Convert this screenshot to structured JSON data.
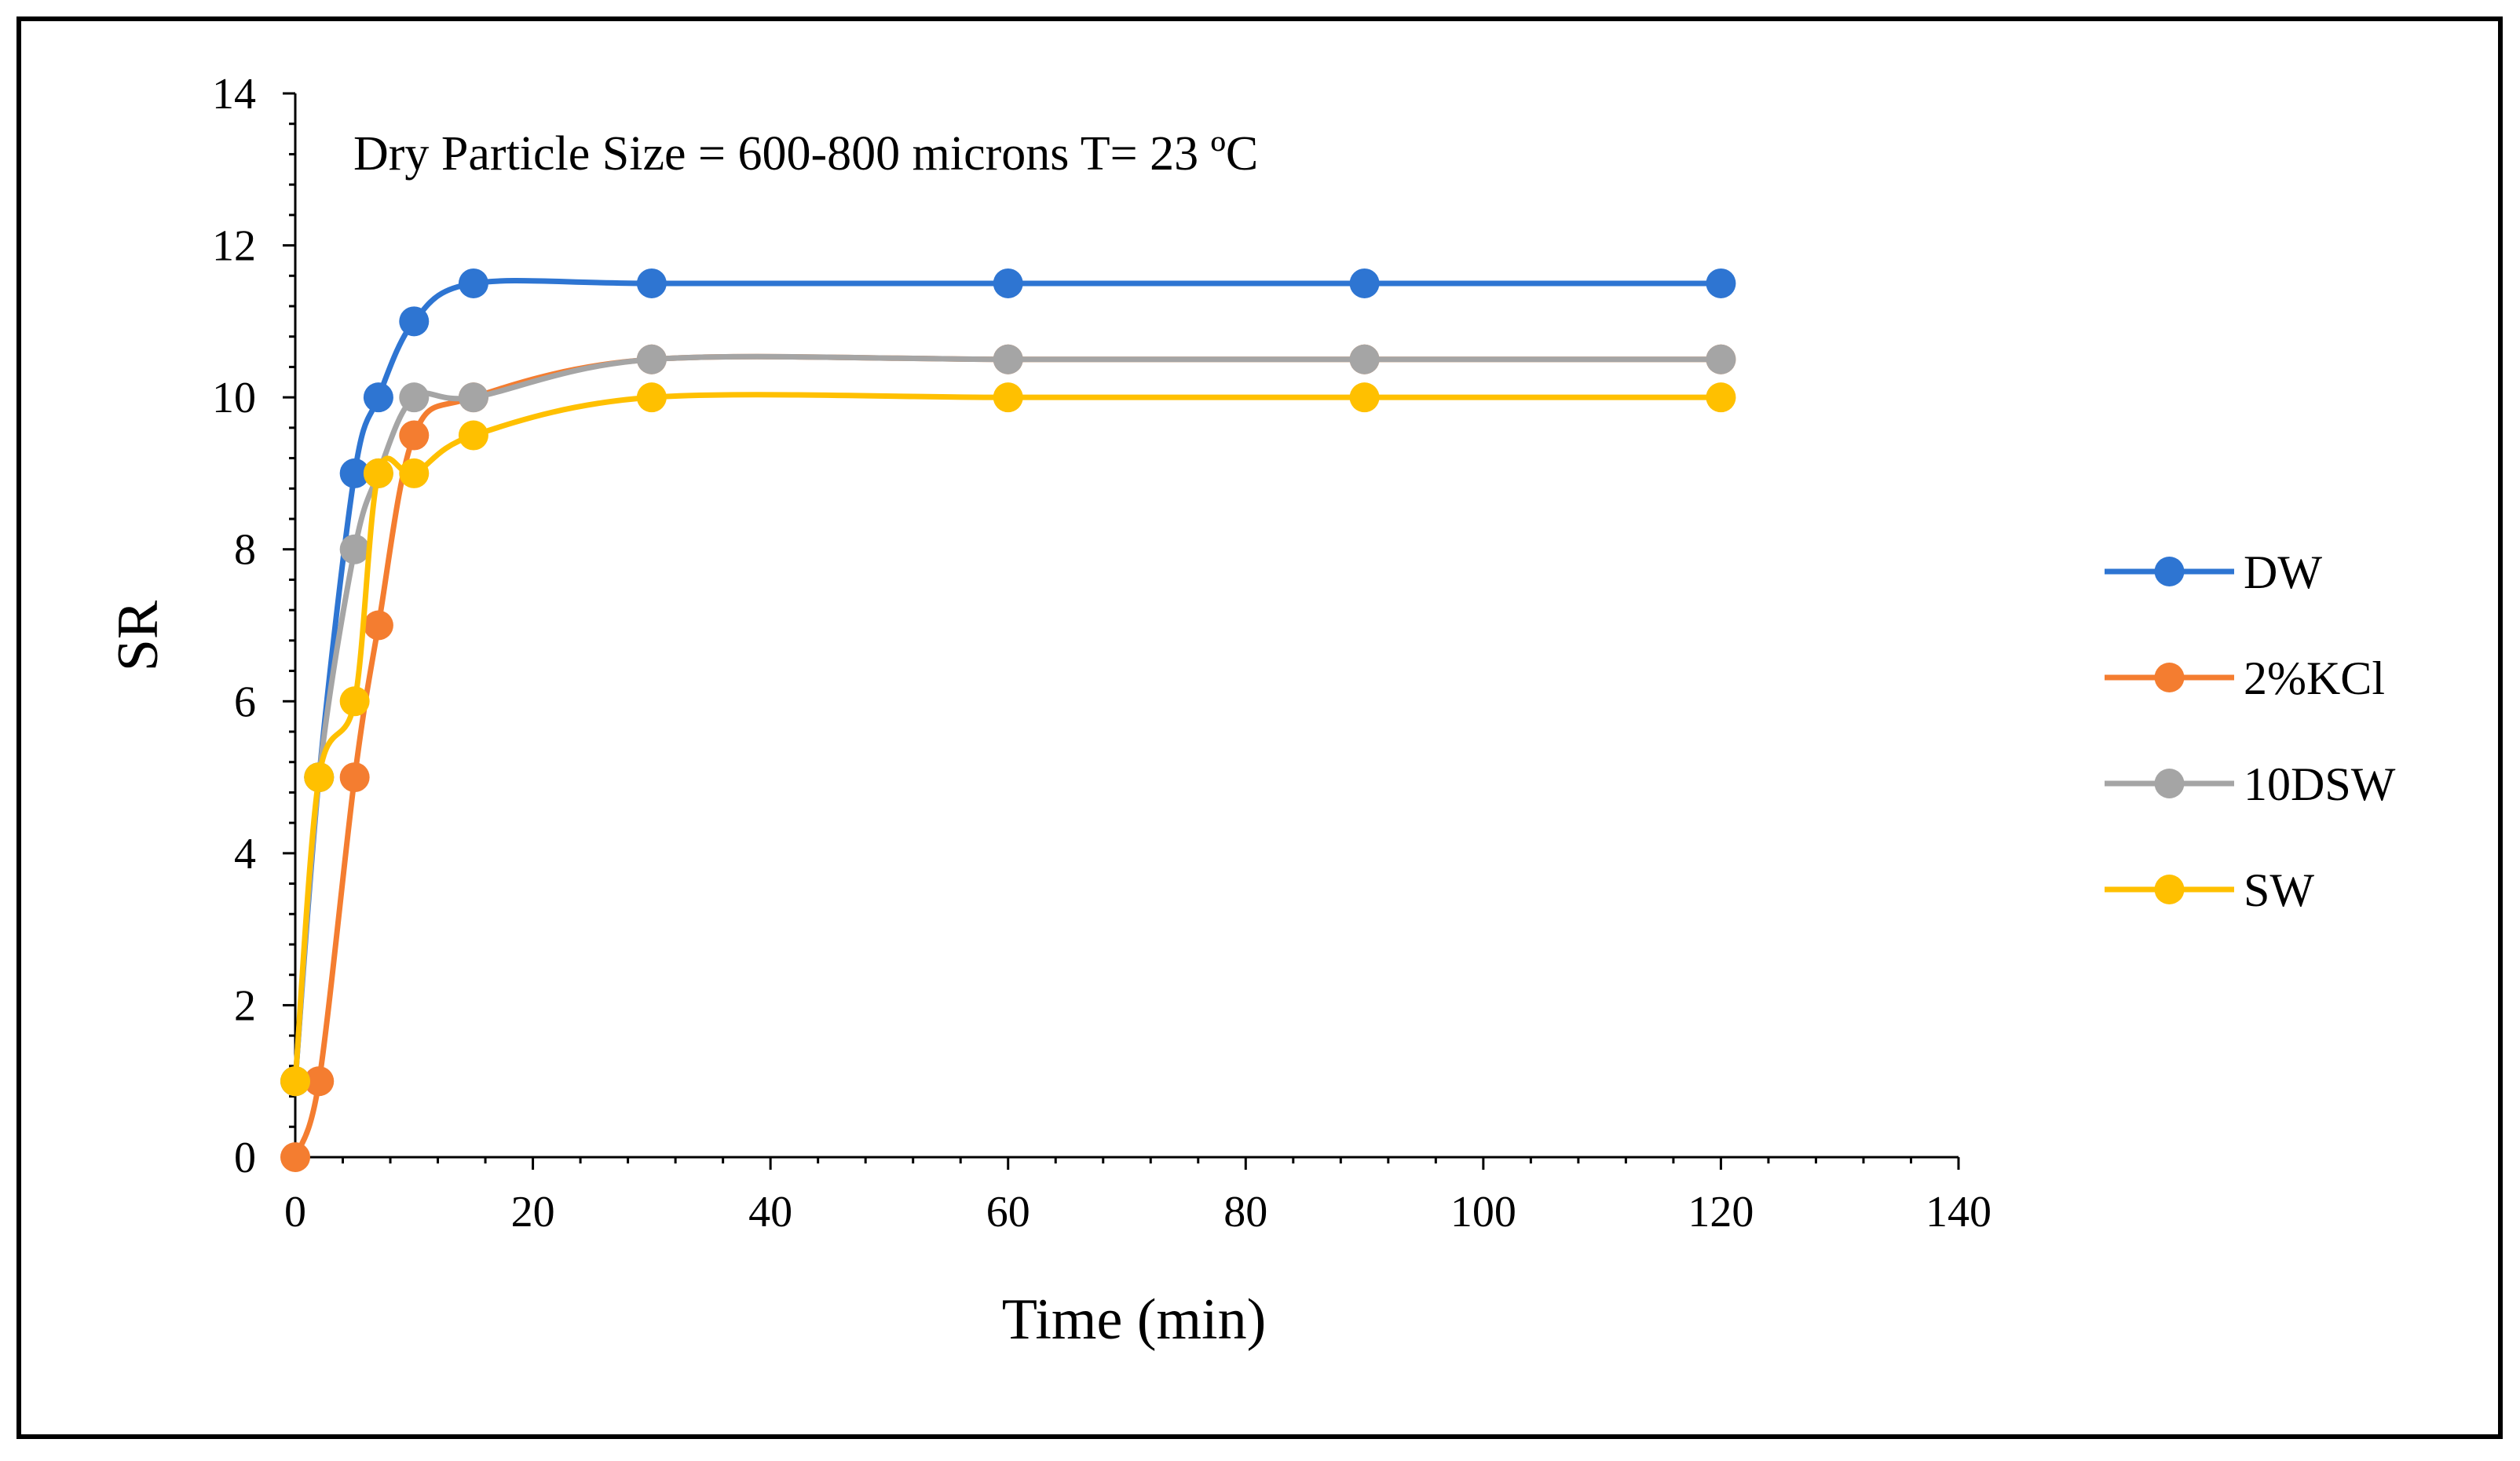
{
  "chart_data": {
    "type": "line",
    "title": "",
    "annotation": "Dry Particle Size = 600-800 microns T= 23 ºC",
    "xlabel": "Time (min)",
    "ylabel": "SR",
    "xlim": [
      0,
      140
    ],
    "ylim": [
      0,
      14
    ],
    "x_ticks": [
      0,
      20,
      40,
      60,
      80,
      100,
      120,
      140
    ],
    "y_ticks": [
      0,
      2,
      4,
      6,
      8,
      10,
      12,
      14
    ],
    "grid": false,
    "legend_position": "right",
    "series": [
      {
        "name": "DW",
        "color": "#2E75D2",
        "x": [
          0,
          2,
          5,
          7,
          10,
          15,
          30,
          60,
          90,
          120
        ],
        "y": [
          1,
          5,
          9,
          10,
          11,
          11.5,
          11.5,
          11.5,
          11.5,
          11.5
        ]
      },
      {
        "name": "2%KCl",
        "color": "#F47D30",
        "x": [
          0,
          2,
          5,
          7,
          10,
          15,
          30,
          60,
          90,
          120
        ],
        "y": [
          0,
          1,
          5,
          7,
          9.5,
          10,
          10.5,
          10.5,
          10.5,
          10.5
        ]
      },
      {
        "name": "10DSW",
        "color": "#A5A5A5",
        "x": [
          0,
          2,
          5,
          7,
          10,
          15,
          30,
          60,
          90,
          120
        ],
        "y": [
          1,
          5,
          8,
          9,
          10,
          10,
          10.5,
          10.5,
          10.5,
          10.5
        ]
      },
      {
        "name": "SW",
        "color": "#FFC000",
        "x": [
          0,
          2,
          5,
          7,
          10,
          15,
          30,
          60,
          90,
          120
        ],
        "y": [
          1,
          5,
          6,
          9,
          9,
          9.5,
          10,
          10,
          10,
          10
        ]
      }
    ]
  }
}
